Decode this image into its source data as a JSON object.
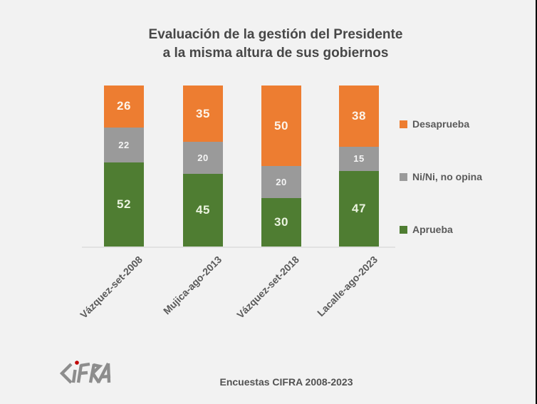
{
  "title": {
    "line1": "Evaluación de la gestión del Presidente",
    "line2": "a la misma altura de sus gobiernos"
  },
  "chart_data": {
    "type": "bar",
    "stacked": true,
    "stacked_total": 100,
    "title": "Evaluación de la gestión del Presidente a la misma altura de sus gobiernos",
    "categories": [
      "Vázquez-set-2008",
      "Mujica-ago-2013",
      "Vázquez-set-2018",
      "Lacalle-ago-2023"
    ],
    "series": [
      {
        "name": "Desaprueba",
        "color": "#ed7d31",
        "label_color": "#fdf4e9",
        "label_size": 17,
        "values": [
          26,
          35,
          50,
          38
        ]
      },
      {
        "name": "Ni/Ni, no opina",
        "color": "#9a9a9a",
        "label_color": "#f5f5f5",
        "label_size": 13,
        "values": [
          22,
          20,
          20,
          15
        ]
      },
      {
        "name": "Aprueba",
        "color": "#4f7d32",
        "label_color": "#eaf3df",
        "label_size": 17,
        "values": [
          52,
          45,
          30,
          47
        ]
      }
    ],
    "xlabel": "",
    "ylabel": "",
    "ylim": [
      0,
      100
    ],
    "grid": false,
    "legend_position": "right",
    "axis_label_rotation_deg": -45
  },
  "legend": {
    "items": [
      {
        "label": "Desaprueba",
        "color": "#ed7d31"
      },
      {
        "label": "Ni/Ni, no opina",
        "color": "#9a9a9a"
      },
      {
        "label": "Aprueba",
        "color": "#4f7d32"
      }
    ]
  },
  "footer": {
    "caption": "Encuestas CIFRA 2008-2023",
    "logo_text": "CIFRA"
  },
  "colors": {
    "background": "#f2f2f2",
    "title_text": "#474747",
    "axis_text": "#5a5a5a",
    "axis_line": "#e2e2e2",
    "logo_gray": "#8d8d8d",
    "logo_dot_red": "#c00000",
    "right_edge": "#0c0c0c"
  }
}
